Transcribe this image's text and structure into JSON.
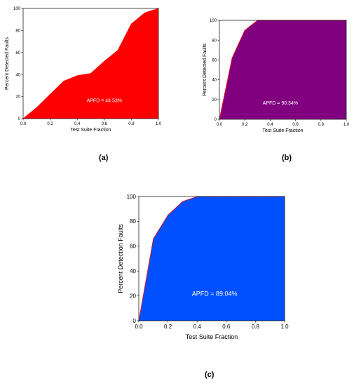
{
  "chart_data": [
    {
      "id": "a",
      "caption": "(a)",
      "type": "area",
      "fill_color": "#ff0000",
      "xlabel": "Test Suite Fraction",
      "ylabel": "Percent Detected Faults",
      "xlim": [
        0,
        1
      ],
      "ylim": [
        0,
        100
      ],
      "xticks": [
        "0.0",
        "0.2",
        "0.4",
        "0.6",
        "0.8",
        "1.0"
      ],
      "yticks": [
        "0",
        "20",
        "40",
        "60",
        "80",
        "100"
      ],
      "annotation": "APFD = 44.53%",
      "x": [
        0,
        0.1,
        0.2,
        0.3,
        0.4,
        0.5,
        0.6,
        0.7,
        0.8,
        0.9,
        1.0
      ],
      "y": [
        0,
        10,
        22,
        34,
        39,
        41,
        52,
        62,
        86,
        96,
        100
      ]
    },
    {
      "id": "b",
      "caption": "(b)",
      "type": "area",
      "fill_color": "#800080",
      "xlabel": "Test Suite Fraction",
      "ylabel": "Percent Detected Faults",
      "xlim": [
        0,
        1
      ],
      "ylim": [
        0,
        100
      ],
      "xticks": [
        "0.0",
        "0.2",
        "0.4",
        "0.6",
        "0.8",
        "1.0"
      ],
      "yticks": [
        "0",
        "20",
        "40",
        "60",
        "80",
        "100"
      ],
      "annotation": "APFD = 90.34%",
      "x": [
        0,
        0.1,
        0.2,
        0.3,
        0.4,
        0.5,
        0.6,
        0.7,
        0.8,
        0.9,
        1.0
      ],
      "y": [
        0,
        62,
        90,
        100,
        100,
        100,
        100,
        100,
        100,
        100,
        100
      ]
    },
    {
      "id": "c",
      "caption": "(c)",
      "type": "area",
      "fill_color": "#0050ff",
      "xlabel": "Test Suite Fraction",
      "ylabel": "Percent Detection Faults",
      "xlim": [
        0,
        1
      ],
      "ylim": [
        0,
        100
      ],
      "xticks": [
        "0.0",
        "0.2",
        "0.4",
        "0.6",
        "0.8",
        "1.0"
      ],
      "yticks": [
        "0",
        "20",
        "40",
        "60",
        "80",
        "100"
      ],
      "annotation": "APFD = 89.04%",
      "x": [
        0,
        0.1,
        0.2,
        0.3,
        0.4,
        0.5,
        0.6,
        0.7,
        0.8,
        0.9,
        1.0
      ],
      "y": [
        0,
        66,
        85,
        96,
        100,
        100,
        100,
        100,
        100,
        100,
        100
      ]
    }
  ]
}
